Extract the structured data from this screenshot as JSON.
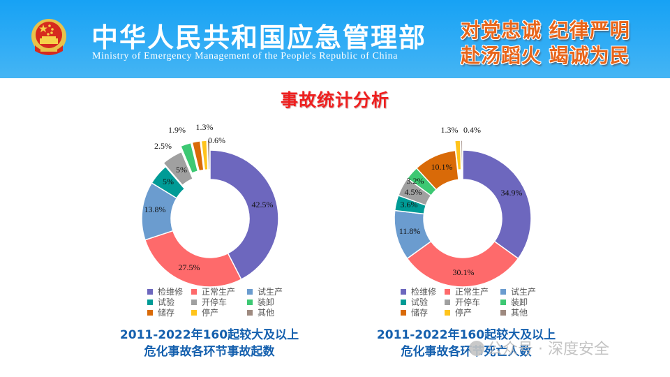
{
  "header": {
    "ministry_name_cn": "中华人民共和国应急管理部",
    "ministry_name_en": "Ministry of Emergency Management of the People's Republic of China",
    "slogan_line1": "对党忠诚  纪律严明",
    "slogan_line2": "赴汤蹈火  竭诚为民",
    "emblem_icon": "national-emblem-icon"
  },
  "page_title": "事故统计分析",
  "legend": {
    "items": [
      {
        "label": "检维修",
        "color": "#6d67be"
      },
      {
        "label": "正常生产",
        "color": "#fe6a6b"
      },
      {
        "label": "试生产",
        "color": "#6b9ccf"
      },
      {
        "label": "试验",
        "color": "#009b96"
      },
      {
        "label": "开停车",
        "color": "#a0a0a0"
      },
      {
        "label": "装卸",
        "color": "#3dc873"
      },
      {
        "label": "储存",
        "color": "#d96a08"
      },
      {
        "label": "停产",
        "color": "#ffc41c"
      },
      {
        "label": "其他",
        "color": "#9e8a80"
      }
    ]
  },
  "chart_data": [
    {
      "type": "pie",
      "variant": "donut",
      "title": "2011-2022年160起较大及以上危化事故各环节事故起数",
      "categories": [
        "检维修",
        "正常生产",
        "试生产",
        "试验",
        "开停车",
        "装卸",
        "储存",
        "停产",
        "其他"
      ],
      "values": [
        42.5,
        27.5,
        13.8,
        5,
        5,
        2.5,
        1.9,
        1.3,
        0.6
      ],
      "labels": [
        "42.5%",
        "27.5%",
        "13.8%",
        "5%",
        "5%",
        "2.5%",
        "1.9%",
        "1.3%",
        "0.6%"
      ],
      "unit": "%",
      "legend_position": "bottom"
    },
    {
      "type": "pie",
      "variant": "donut",
      "title": "2011-2022年160起较大及以上危化事故各环节死亡人数",
      "categories": [
        "检维修",
        "正常生产",
        "试生产",
        "试验",
        "开停车",
        "装卸",
        "储存",
        "停产",
        "其他"
      ],
      "values": [
        34.9,
        30.1,
        11.8,
        3.6,
        4.5,
        3.2,
        10.1,
        1.3,
        0.4
      ],
      "labels": [
        "34.9%",
        "30.1%",
        "11.8%",
        "3.6%",
        "4.5%",
        "3.2%",
        "10.1%",
        "1.3%",
        "0.4%"
      ],
      "unit": "%",
      "legend_position": "bottom"
    }
  ],
  "captions": {
    "left_line1": "2011-2022年160起较大及以上",
    "left_line2": "危化事故各环节事故起数",
    "right_line1": "2011-2022年160起较大及以上",
    "right_line2": "危化事故各环节死亡人数"
  },
  "watermark": "公众号 · 深度安全"
}
